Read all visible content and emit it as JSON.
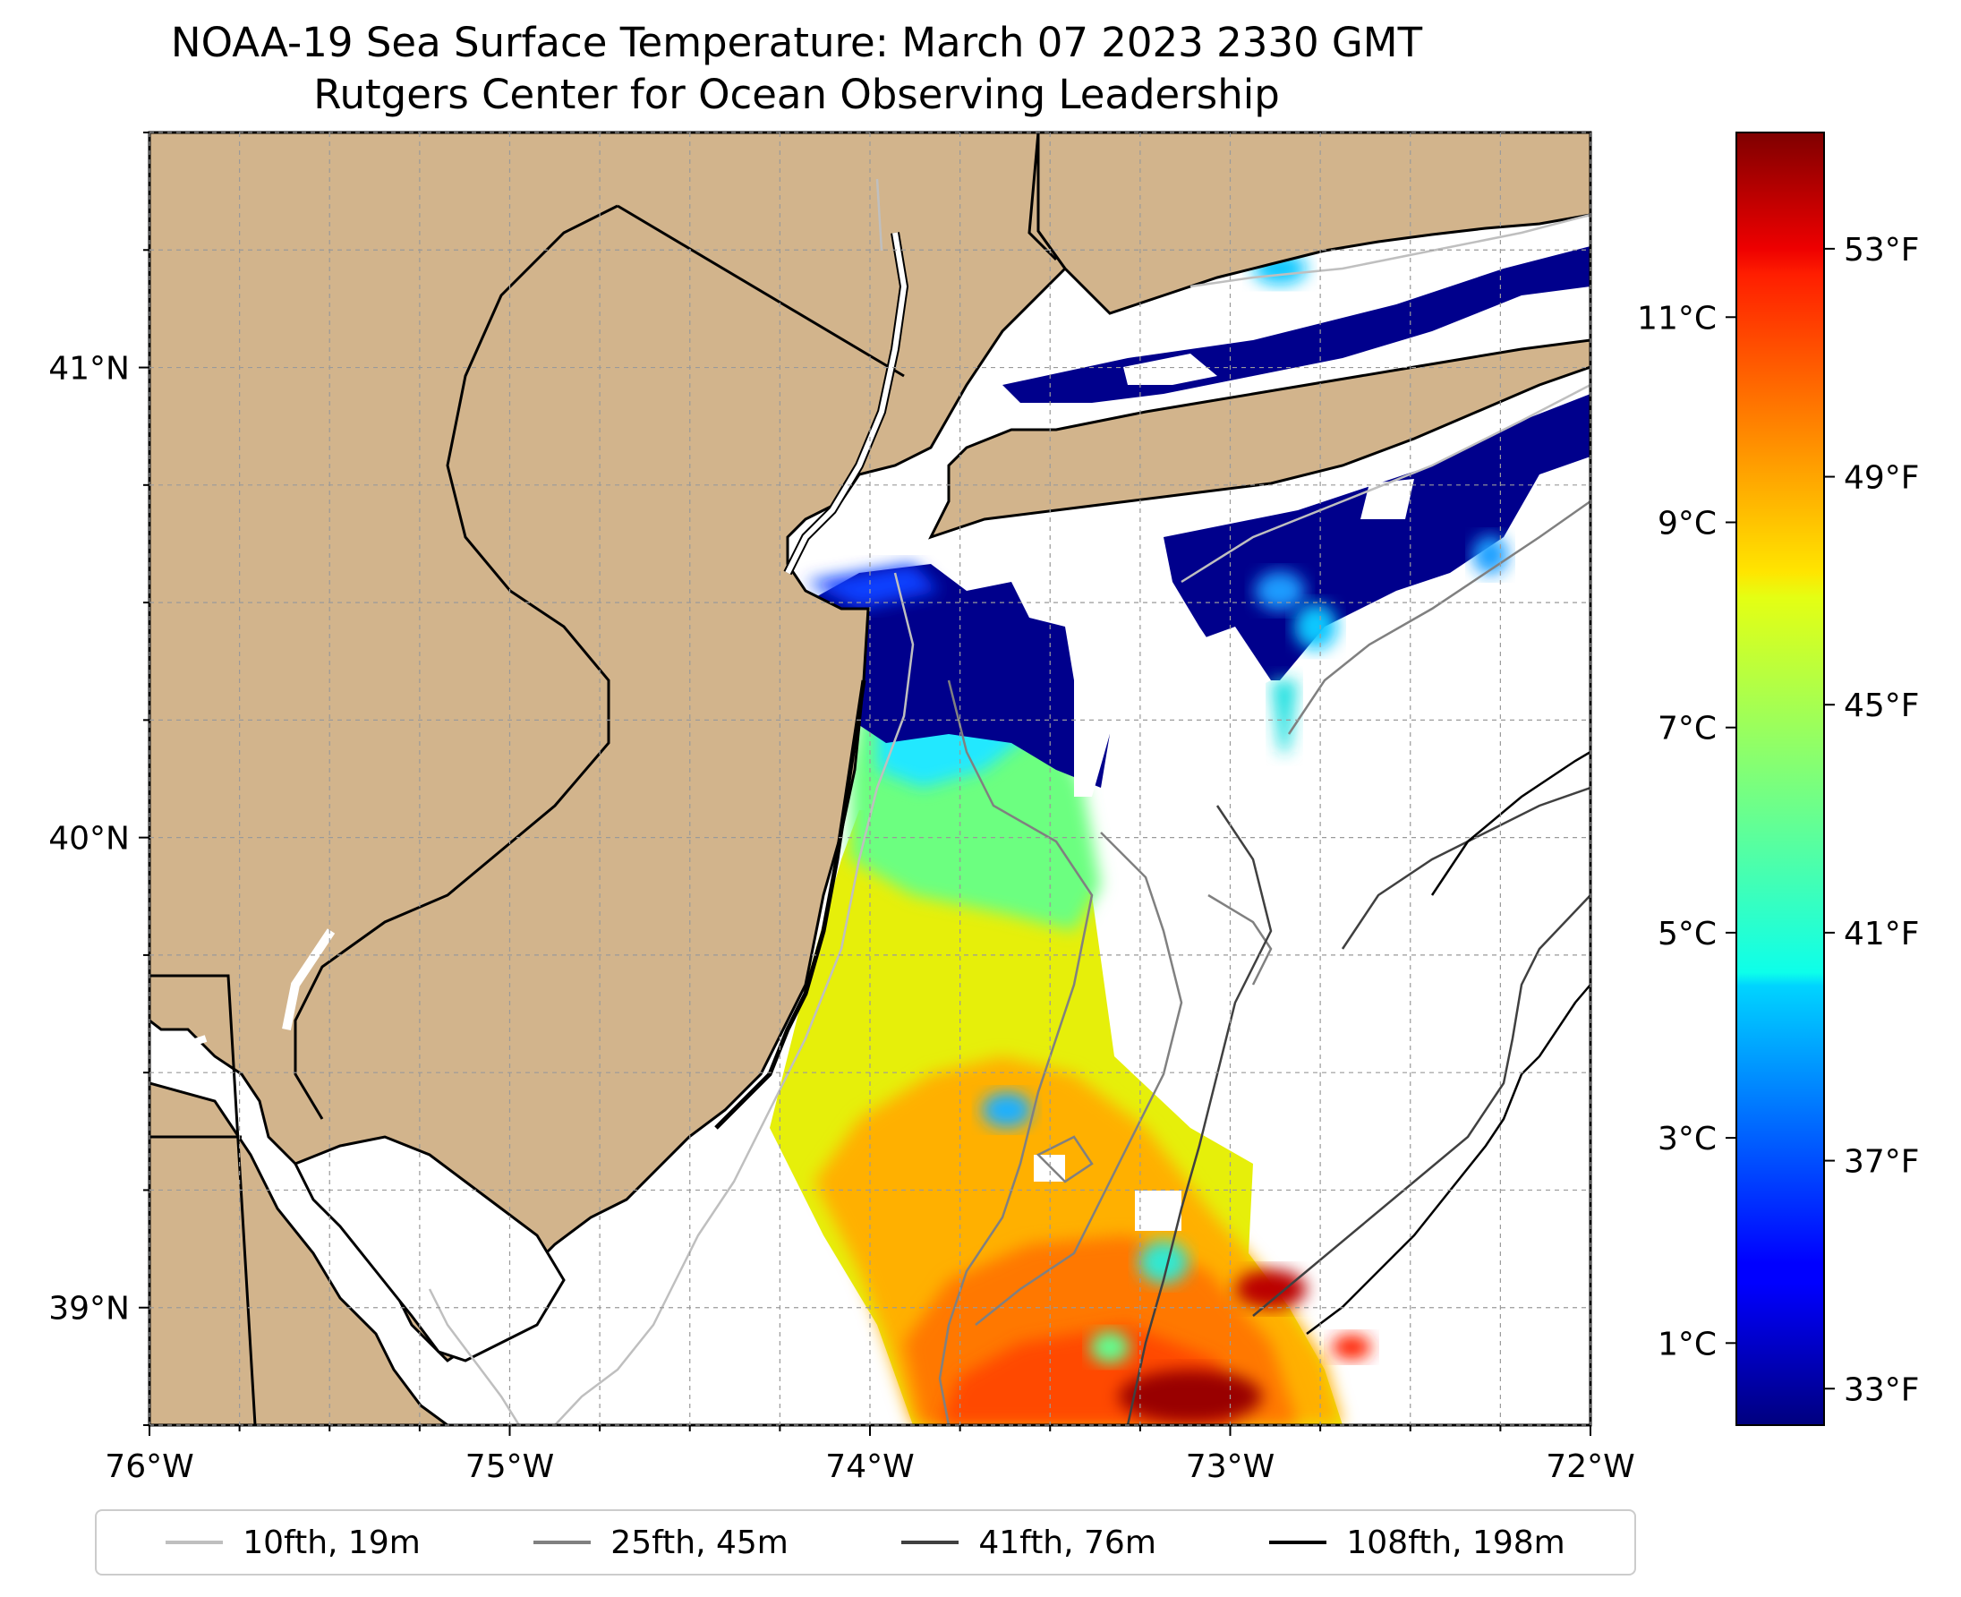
{
  "title": "NOAA-19 Sea Surface Temperature: March 07 2023 2330 GMT",
  "subtitle": "Rutgers Center for Ocean Observing Leadership",
  "map": {
    "lon_range": [
      -76,
      -72
    ],
    "lat_range": [
      38.75,
      41.5
    ],
    "lon_ticks": [
      -76,
      -75,
      -74,
      -73,
      -72
    ],
    "lon_tick_labels": [
      "76°W",
      "75°W",
      "74°W",
      "73°W",
      "72°W"
    ],
    "lat_ticks": [
      39,
      40,
      41
    ],
    "lat_tick_labels": [
      "39°N",
      "40°N",
      "41°N"
    ],
    "gridlines": "dashed, every 0.25°",
    "land_color": "#d2b48c",
    "no_data_color": "#ffffff",
    "border_color": "#000000"
  },
  "colorbar": {
    "colormap": "jet",
    "range_c": [
      0.2,
      12.8
    ],
    "celsius_ticks": [
      1,
      3,
      5,
      7,
      9,
      11
    ],
    "celsius_labels": [
      "1°C",
      "3°C",
      "5°C",
      "7°C",
      "9°C",
      "11°C"
    ],
    "fahrenheit_ticks": [
      33,
      37,
      41,
      45,
      49,
      53
    ],
    "fahrenheit_labels": [
      "33°F",
      "37°F",
      "41°F",
      "45°F",
      "49°F",
      "53°F"
    ]
  },
  "legend": {
    "placement": "bottom",
    "items": [
      {
        "label": "10fth, 19m",
        "color": "#bfbfbf"
      },
      {
        "label": "25fth, 45m",
        "color": "#808080"
      },
      {
        "label": "41fth, 76m",
        "color": "#404040"
      },
      {
        "label": "108fth, 198m",
        "color": "#000000"
      }
    ]
  }
}
